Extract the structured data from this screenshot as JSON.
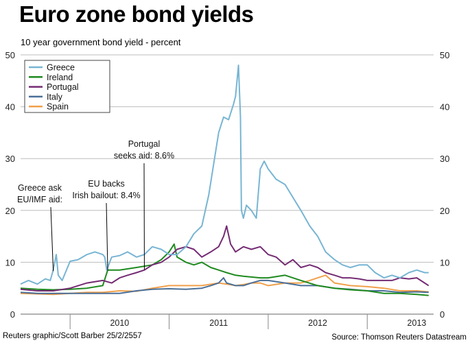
{
  "header": {
    "title": "Euro zone bond yields",
    "subtitle": "10 year government bond yield - percent"
  },
  "footer": {
    "credit": "Reuters graphic/Scott Barber 25/2/2557",
    "source": "Source: Thomson Reuters Datastream"
  },
  "chart_data": {
    "type": "line",
    "title": "Euro zone bond yields",
    "subtitle": "10 year government bond yield - percent",
    "xlabel": "",
    "ylabel": "",
    "x_ticks": [
      "2010",
      "2011",
      "2012",
      "2013"
    ],
    "y_ticks": [
      0,
      10,
      20,
      30,
      40,
      50
    ],
    "ylim": [
      0,
      50
    ],
    "xlim": [
      2009.5,
      2013.67
    ],
    "grid": "horizontal",
    "legend_position": "top-left",
    "series": [
      {
        "name": "Greece",
        "color": "#77b5d3",
        "x": [
          2009.5,
          2009.58,
          2009.67,
          2009.75,
          2009.8,
          2009.83,
          2009.86,
          2009.88,
          2009.92,
          2010.0,
          2010.08,
          2010.17,
          2010.25,
          2010.33,
          2010.35,
          2010.37,
          2010.42,
          2010.5,
          2010.58,
          2010.67,
          2010.75,
          2010.83,
          2010.92,
          2011.0,
          2011.08,
          2011.17,
          2011.25,
          2011.33,
          2011.4,
          2011.45,
          2011.5,
          2011.55,
          2011.6,
          2011.65,
          2011.67,
          2011.7,
          2011.72,
          2011.73,
          2011.75,
          2011.78,
          2011.83,
          2011.88,
          2011.92,
          2011.96,
          2012.0,
          2012.08,
          2012.17,
          2012.25,
          2012.33,
          2012.42,
          2012.5,
          2012.58,
          2012.67,
          2012.75,
          2012.83,
          2012.92,
          2013.0,
          2013.08,
          2013.17,
          2013.25,
          2013.33,
          2013.42,
          2013.5,
          2013.58,
          2013.62
        ],
        "y": [
          5.8,
          6.5,
          5.8,
          6.8,
          6.5,
          8.5,
          11.5,
          7.5,
          6.5,
          10.2,
          10.5,
          11.5,
          12.0,
          11.5,
          11.0,
          8.5,
          11.0,
          11.3,
          12.0,
          11.0,
          11.5,
          13.0,
          12.5,
          11.5,
          11.5,
          13.0,
          15.5,
          17.0,
          23.0,
          29.0,
          35.0,
          38.0,
          37.5,
          40.5,
          42.0,
          48.0,
          38.0,
          20.0,
          18.5,
          21.0,
          20.0,
          18.5,
          28.0,
          29.5,
          28.0,
          26.0,
          25.0,
          22.5,
          20.0,
          17.0,
          15.0,
          12.0,
          10.5,
          9.5,
          9.0,
          9.5,
          9.5,
          8.0,
          7.0,
          7.5,
          7.0,
          8.0,
          8.5,
          8.0,
          8.0
        ]
      },
      {
        "name": "Ireland",
        "color": "#1e8a1e",
        "x": [
          2009.5,
          2009.67,
          2009.83,
          2010.0,
          2010.17,
          2010.33,
          2010.38,
          2010.5,
          2010.67,
          2010.83,
          2010.92,
          2011.0,
          2011.05,
          2011.08,
          2011.17,
          2011.25,
          2011.33,
          2011.42,
          2011.5,
          2011.58,
          2011.67,
          2011.75,
          2011.92,
          2012.0,
          2012.17,
          2012.33,
          2012.5,
          2012.67,
          2012.83,
          2013.0,
          2013.17,
          2013.33,
          2013.5,
          2013.62
        ],
        "y": [
          5.0,
          4.8,
          4.7,
          4.8,
          5.0,
          5.5,
          8.5,
          8.5,
          9.0,
          9.5,
          10.5,
          12.0,
          13.5,
          11.0,
          10.0,
          9.5,
          10.0,
          9.0,
          8.5,
          8.0,
          7.5,
          7.3,
          7.0,
          7.0,
          7.5,
          6.5,
          5.5,
          5.0,
          4.7,
          4.5,
          4.0,
          4.0,
          3.8,
          3.6
        ]
      },
      {
        "name": "Portugal",
        "color": "#742b73",
        "x": [
          2009.5,
          2009.67,
          2009.83,
          2010.0,
          2010.17,
          2010.33,
          2010.42,
          2010.5,
          2010.58,
          2010.67,
          2010.75,
          2010.83,
          2010.92,
          2011.0,
          2011.08,
          2011.17,
          2011.25,
          2011.33,
          2011.42,
          2011.5,
          2011.55,
          2011.58,
          2011.62,
          2011.67,
          2011.75,
          2011.83,
          2011.92,
          2012.0,
          2012.08,
          2012.17,
          2012.25,
          2012.33,
          2012.42,
          2012.5,
          2012.58,
          2012.67,
          2012.75,
          2012.83,
          2012.92,
          2013.0,
          2013.08,
          2013.17,
          2013.25,
          2013.33,
          2013.42,
          2013.5,
          2013.58,
          2013.62
        ],
        "y": [
          4.8,
          4.5,
          4.5,
          5.0,
          6.0,
          6.5,
          6.0,
          7.0,
          7.5,
          8.0,
          8.5,
          9.5,
          10.0,
          11.0,
          12.5,
          13.0,
          12.5,
          11.0,
          12.0,
          13.0,
          15.0,
          17.0,
          13.5,
          12.0,
          13.0,
          12.5,
          13.0,
          11.5,
          11.0,
          9.5,
          10.5,
          9.0,
          9.5,
          9.0,
          8.0,
          7.5,
          7.0,
          7.0,
          6.8,
          6.5,
          6.5,
          6.5,
          6.5,
          7.0,
          6.8,
          7.0,
          6.0,
          5.5
        ]
      },
      {
        "name": "Italy",
        "color": "#4a6f98",
        "x": [
          2009.5,
          2009.67,
          2009.83,
          2010.0,
          2010.17,
          2010.33,
          2010.5,
          2010.67,
          2010.83,
          2011.0,
          2011.17,
          2011.33,
          2011.42,
          2011.5,
          2011.55,
          2011.58,
          2011.67,
          2011.75,
          2011.83,
          2011.92,
          2012.0,
          2012.17,
          2012.33,
          2012.5,
          2012.67,
          2012.83,
          2013.0,
          2013.17,
          2013.33,
          2013.5,
          2013.62
        ],
        "y": [
          4.2,
          4.0,
          4.0,
          4.0,
          4.0,
          4.0,
          4.0,
          4.5,
          4.8,
          4.9,
          4.8,
          5.0,
          5.5,
          6.0,
          7.0,
          6.0,
          5.5,
          5.5,
          6.0,
          6.5,
          6.5,
          6.0,
          5.5,
          5.5,
          5.0,
          4.8,
          4.5,
          4.5,
          4.2,
          4.3,
          4.2
        ]
      },
      {
        "name": "Spain",
        "color": "#f0a04b",
        "x": [
          2009.5,
          2009.67,
          2009.83,
          2010.0,
          2010.17,
          2010.33,
          2010.5,
          2010.67,
          2010.83,
          2011.0,
          2011.17,
          2011.33,
          2011.5,
          2011.58,
          2011.67,
          2011.75,
          2011.83,
          2011.92,
          2012.0,
          2012.17,
          2012.33,
          2012.42,
          2012.5,
          2012.58,
          2012.67,
          2012.83,
          2013.0,
          2013.17,
          2013.33,
          2013.5,
          2013.62
        ],
        "y": [
          4.0,
          3.9,
          3.8,
          4.0,
          4.2,
          4.2,
          4.5,
          4.4,
          5.0,
          5.5,
          5.5,
          5.5,
          6.0,
          5.8,
          5.5,
          5.7,
          6.0,
          6.0,
          5.5,
          6.0,
          6.0,
          6.5,
          7.0,
          7.5,
          6.0,
          5.5,
          5.3,
          5.0,
          4.5,
          4.5,
          4.3
        ]
      }
    ],
    "annotations": [
      {
        "id": "greece",
        "lines": [
          "Greece ask",
          "EU/IMF aid:"
        ],
        "x": 2009.83,
        "y": 8.3
      },
      {
        "id": "ireland",
        "lines": [
          "EU backs",
          "Irish bailout: 8.4%"
        ],
        "x": 2010.38,
        "y": 8.4
      },
      {
        "id": "portugal",
        "lines": [
          "Portugal",
          "seeks aid: 8.6%"
        ],
        "x": 2010.75,
        "y": 8.6
      }
    ]
  }
}
